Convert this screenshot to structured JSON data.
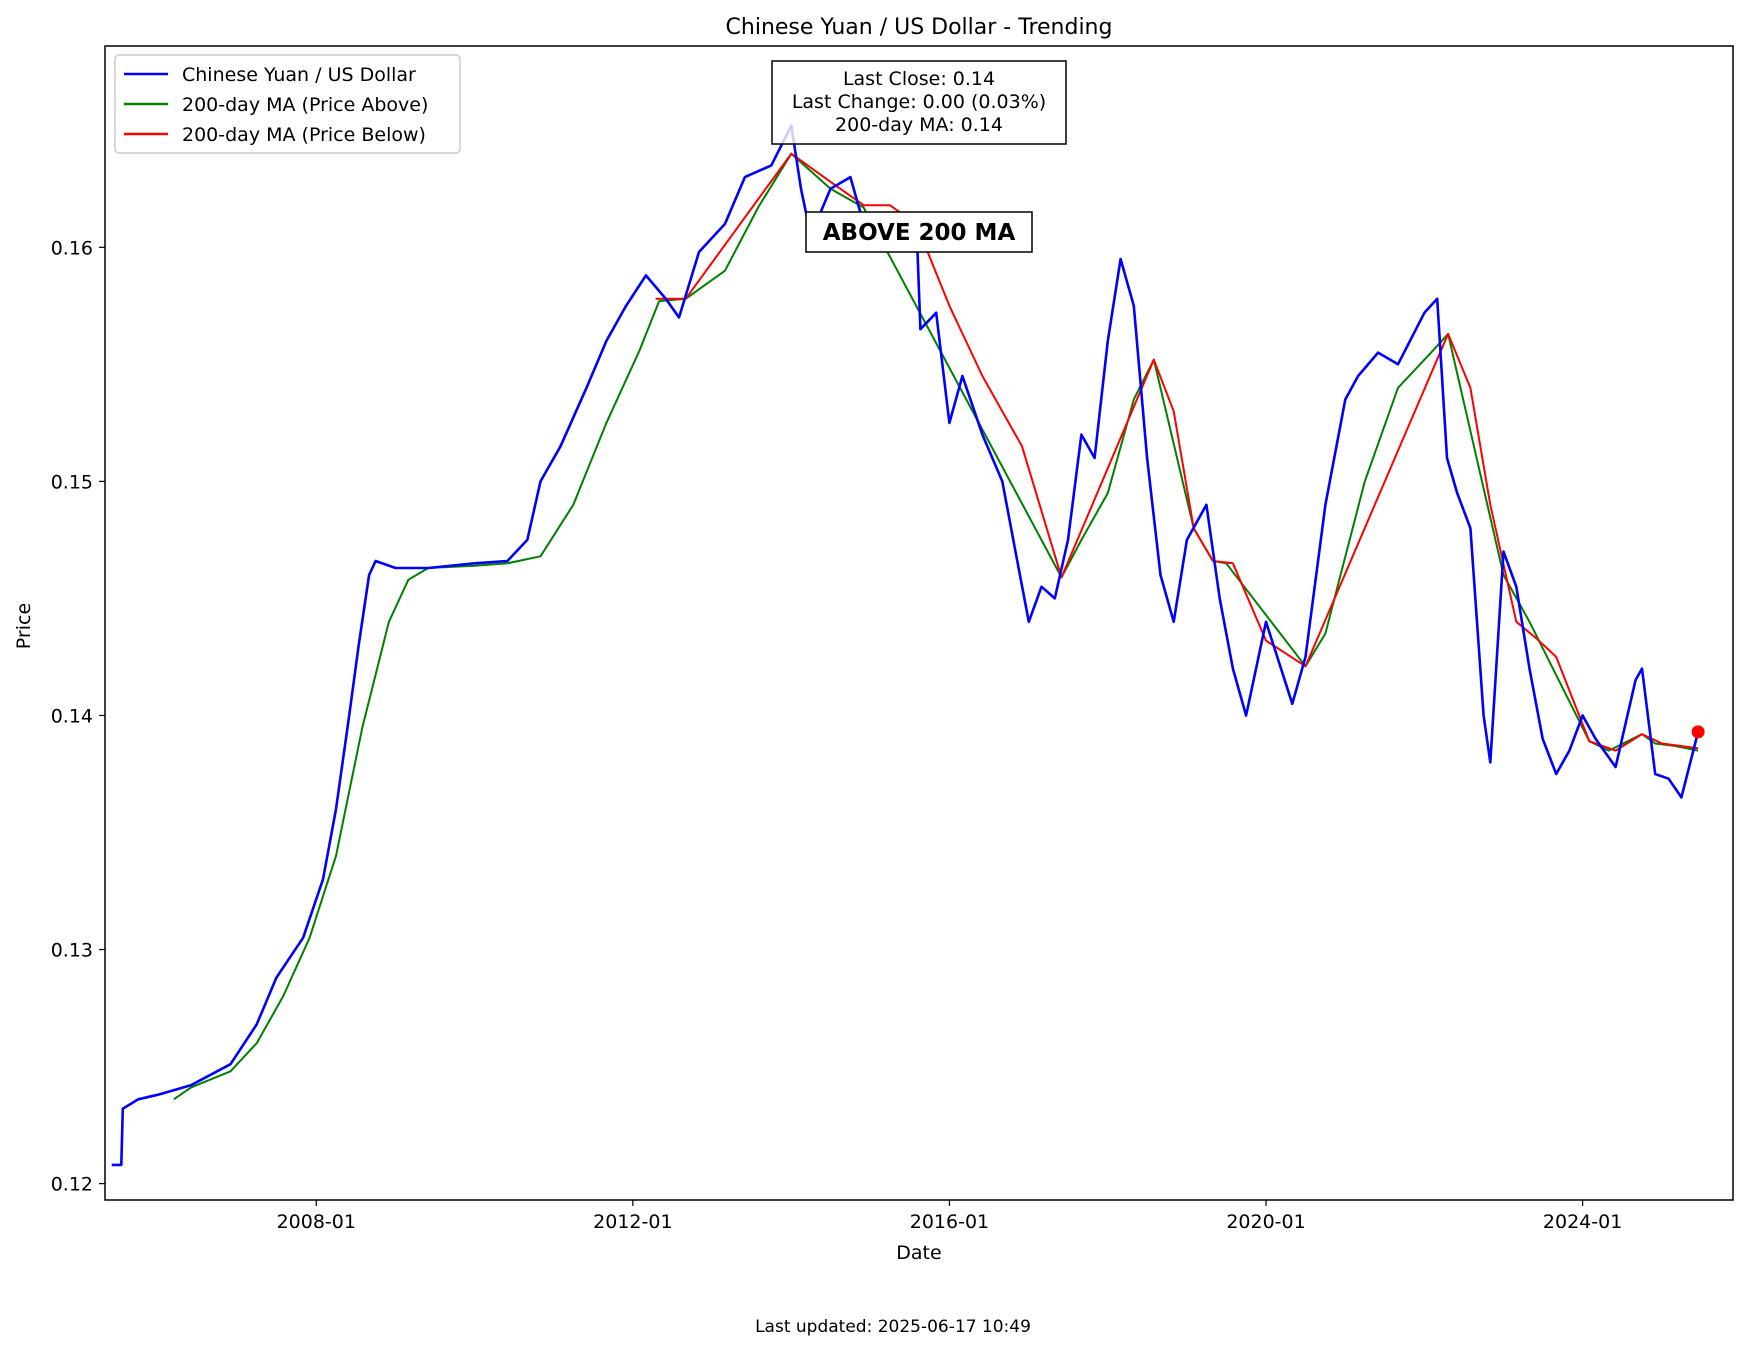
{
  "chart_data": {
    "type": "line",
    "title": "Chinese Yuan / US Dollar - Trending",
    "xlabel": "Date",
    "ylabel": "Price",
    "x_range": [
      "2005-05-01",
      "2025-11-25"
    ],
    "ylim": [
      0.1193,
      0.1686
    ],
    "x_ticks": [
      "2008-01",
      "2012-01",
      "2016-01",
      "2020-01",
      "2024-01"
    ],
    "y_ticks": [
      "0.12",
      "0.13",
      "0.14",
      "0.15",
      "0.16"
    ],
    "grid": false,
    "legend_position": "top-left",
    "series": [
      {
        "name": "Chinese Yuan / US Dollar",
        "color": "#0000ff",
        "points": [
          [
            "2005-06-01",
            0.1208
          ],
          [
            "2005-07-15",
            0.1208
          ],
          [
            "2005-07-22",
            0.1232
          ],
          [
            "2005-10-01",
            0.1236
          ],
          [
            "2006-01-01",
            0.1238
          ],
          [
            "2006-06-01",
            0.1242
          ],
          [
            "2006-12-01",
            0.1251
          ],
          [
            "2007-04-01",
            0.1268
          ],
          [
            "2007-07-01",
            0.1288
          ],
          [
            "2007-11-01",
            0.1305
          ],
          [
            "2008-02-01",
            0.133
          ],
          [
            "2008-04-01",
            0.136
          ],
          [
            "2008-06-01",
            0.14
          ],
          [
            "2008-07-15",
            0.143
          ],
          [
            "2008-09-01",
            0.146
          ],
          [
            "2008-10-01",
            0.1466
          ],
          [
            "2009-01-01",
            0.1463
          ],
          [
            "2009-06-01",
            0.1463
          ],
          [
            "2010-01-01",
            0.1465
          ],
          [
            "2010-06-01",
            0.1466
          ],
          [
            "2010-09-01",
            0.1475
          ],
          [
            "2010-11-01",
            0.15
          ],
          [
            "2011-02-01",
            0.1515
          ],
          [
            "2011-06-01",
            0.154
          ],
          [
            "2011-09-01",
            0.156
          ],
          [
            "2011-12-01",
            0.1575
          ],
          [
            "2012-03-01",
            0.1588
          ],
          [
            "2012-06-01",
            0.1578
          ],
          [
            "2012-08-01",
            0.157
          ],
          [
            "2012-11-01",
            0.1598
          ],
          [
            "2013-03-01",
            0.161
          ],
          [
            "2013-06-01",
            0.163
          ],
          [
            "2013-10-01",
            0.1635
          ],
          [
            "2014-01-01",
            0.1652
          ],
          [
            "2014-02-15",
            0.1625
          ],
          [
            "2014-04-01",
            0.1605
          ],
          [
            "2014-07-01",
            0.1625
          ],
          [
            "2014-10-01",
            0.163
          ],
          [
            "2014-12-01",
            0.161
          ],
          [
            "2015-03-01",
            0.161
          ],
          [
            "2015-08-01",
            0.1612
          ],
          [
            "2015-08-20",
            0.1565
          ],
          [
            "2015-11-01",
            0.1572
          ],
          [
            "2016-01-01",
            0.1525
          ],
          [
            "2016-03-01",
            0.1545
          ],
          [
            "2016-06-01",
            0.152
          ],
          [
            "2016-09-01",
            0.15
          ],
          [
            "2016-11-01",
            0.147
          ],
          [
            "2017-01-01",
            0.144
          ],
          [
            "2017-03-01",
            0.1455
          ],
          [
            "2017-05-01",
            0.145
          ],
          [
            "2017-07-01",
            0.1475
          ],
          [
            "2017-09-01",
            0.152
          ],
          [
            "2017-11-01",
            0.151
          ],
          [
            "2018-01-01",
            0.156
          ],
          [
            "2018-03-01",
            0.1595
          ],
          [
            "2018-05-01",
            0.1575
          ],
          [
            "2018-07-01",
            0.151
          ],
          [
            "2018-09-01",
            0.146
          ],
          [
            "2018-11-01",
            0.144
          ],
          [
            "2019-01-01",
            0.1475
          ],
          [
            "2019-04-01",
            0.149
          ],
          [
            "2019-06-01",
            0.145
          ],
          [
            "2019-08-01",
            0.142
          ],
          [
            "2019-10-01",
            0.14
          ],
          [
            "2020-01-01",
            0.144
          ],
          [
            "2020-05-01",
            0.1405
          ],
          [
            "2020-07-01",
            0.1425
          ],
          [
            "2020-10-01",
            0.149
          ],
          [
            "2021-01-01",
            0.1535
          ],
          [
            "2021-03-01",
            0.1545
          ],
          [
            "2021-06-01",
            0.1555
          ],
          [
            "2021-09-01",
            0.155
          ],
          [
            "2022-01-01",
            0.1572
          ],
          [
            "2022-03-01",
            0.1578
          ],
          [
            "2022-04-15",
            0.151
          ],
          [
            "2022-06-01",
            0.1495
          ],
          [
            "2022-08-01",
            0.148
          ],
          [
            "2022-10-01",
            0.14
          ],
          [
            "2022-11-01",
            0.138
          ],
          [
            "2023-01-01",
            0.147
          ],
          [
            "2023-03-01",
            0.1455
          ],
          [
            "2023-05-01",
            0.142
          ],
          [
            "2023-07-01",
            0.139
          ],
          [
            "2023-09-01",
            0.1375
          ],
          [
            "2023-11-01",
            0.1385
          ],
          [
            "2024-01-01",
            0.14
          ],
          [
            "2024-03-01",
            0.139
          ],
          [
            "2024-06-01",
            0.1378
          ],
          [
            "2024-09-01",
            0.1415
          ],
          [
            "2024-10-01",
            0.142
          ],
          [
            "2024-12-01",
            0.1375
          ],
          [
            "2025-02-01",
            0.1373
          ],
          [
            "2025-04-01",
            0.1365
          ],
          [
            "2025-06-17",
            0.1393
          ]
        ]
      },
      {
        "name": "200-day MA (Price Above)",
        "color": "#008000",
        "points": [
          [
            "2006-03-15",
            0.1236
          ],
          [
            "2006-06-01",
            0.1241
          ],
          [
            "2006-12-01",
            0.1248
          ],
          [
            "2007-04-01",
            0.126
          ],
          [
            "2007-08-01",
            0.128
          ],
          [
            "2007-12-01",
            0.1305
          ],
          [
            "2008-04-01",
            0.134
          ],
          [
            "2008-08-01",
            0.1395
          ],
          [
            "2008-12-01",
            0.144
          ],
          [
            "2009-03-01",
            0.1458
          ],
          [
            "2009-06-01",
            0.1463
          ],
          [
            "2010-01-01",
            0.1464
          ],
          [
            "2010-06-01",
            0.1465
          ],
          [
            "2010-11-01",
            0.1468
          ],
          [
            "2011-04-01",
            0.149
          ],
          [
            "2011-09-01",
            0.1525
          ],
          [
            "2012-02-01",
            0.1556
          ],
          [
            "2012-05-01",
            0.1577
          ],
          [
            "2012-09-01",
            0.1578
          ],
          [
            "2013-03-01",
            0.159
          ],
          [
            "2013-08-01",
            0.1617
          ],
          [
            "2014-01-01",
            0.164
          ],
          [
            "2014-07-01",
            0.1625
          ],
          [
            "2014-12-01",
            0.1617
          ],
          [
            "2017-06-01",
            0.1459
          ],
          [
            "2017-09-01",
            0.1475
          ],
          [
            "2018-01-01",
            0.1495
          ],
          [
            "2018-05-01",
            0.1535
          ],
          [
            "2018-08-01",
            0.1552
          ],
          [
            "2019-02-01",
            0.148
          ],
          [
            "2019-05-01",
            0.1466
          ],
          [
            "2019-07-01",
            0.1465
          ],
          [
            "2020-07-01",
            0.1421
          ],
          [
            "2020-10-01",
            0.1435
          ],
          [
            "2021-04-01",
            0.15
          ],
          [
            "2021-09-01",
            0.154
          ],
          [
            "2022-02-01",
            0.1555
          ],
          [
            "2022-04-20",
            0.1563
          ],
          [
            "2023-01-01",
            0.146
          ],
          [
            "2023-05-01",
            0.144
          ],
          [
            "2024-02-01",
            0.1389
          ],
          [
            "2024-05-01",
            0.1385
          ],
          [
            "2024-10-01",
            0.1392
          ],
          [
            "2024-12-01",
            0.1388
          ],
          [
            "2025-03-01",
            0.1387
          ],
          [
            "2025-06-17",
            0.1385
          ]
        ]
      },
      {
        "name": "200-day MA (Price Below)",
        "color": "#ff0000",
        "points": [
          [
            "2012-04-15",
            0.1578
          ],
          [
            "2012-09-01",
            0.1578
          ],
          [
            "2014-01-01",
            0.164
          ],
          [
            "2014-07-01",
            0.1628
          ],
          [
            "2014-12-01",
            0.1618
          ],
          [
            "2015-04-01",
            0.1618
          ],
          [
            "2015-08-01",
            0.161
          ],
          [
            "2016-01-01",
            0.1575
          ],
          [
            "2016-06-01",
            0.1545
          ],
          [
            "2016-12-01",
            0.1515
          ],
          [
            "2017-06-01",
            0.1459
          ],
          [
            "2018-08-01",
            0.1552
          ],
          [
            "2018-11-01",
            0.153
          ],
          [
            "2019-02-01",
            0.148
          ],
          [
            "2019-05-01",
            0.1466
          ],
          [
            "2019-08-01",
            0.1465
          ],
          [
            "2020-01-01",
            0.1432
          ],
          [
            "2020-07-01",
            0.1421
          ],
          [
            "2022-04-20",
            0.1563
          ],
          [
            "2022-08-01",
            0.154
          ],
          [
            "2022-11-01",
            0.149
          ],
          [
            "2023-03-01",
            0.144
          ],
          [
            "2023-06-01",
            0.1433
          ],
          [
            "2023-09-01",
            0.1425
          ],
          [
            "2024-02-01",
            0.1389
          ],
          [
            "2024-06-01",
            0.1385
          ],
          [
            "2024-10-01",
            0.1392
          ],
          [
            "2025-01-01",
            0.1388
          ],
          [
            "2025-06-17",
            0.1386
          ]
        ]
      }
    ],
    "last_point": {
      "date": "2025-06-17",
      "value": 0.1393,
      "color": "#ff0000"
    },
    "info_box": [
      "Last Close: 0.14",
      "Last Change: 0.00 (0.03%)",
      "200-day MA: 0.14"
    ],
    "status_label": {
      "text": "ABOVE 200 MA",
      "color": "#008000"
    }
  },
  "footer": {
    "updated": "Last updated: 2025-06-17 10:49"
  }
}
